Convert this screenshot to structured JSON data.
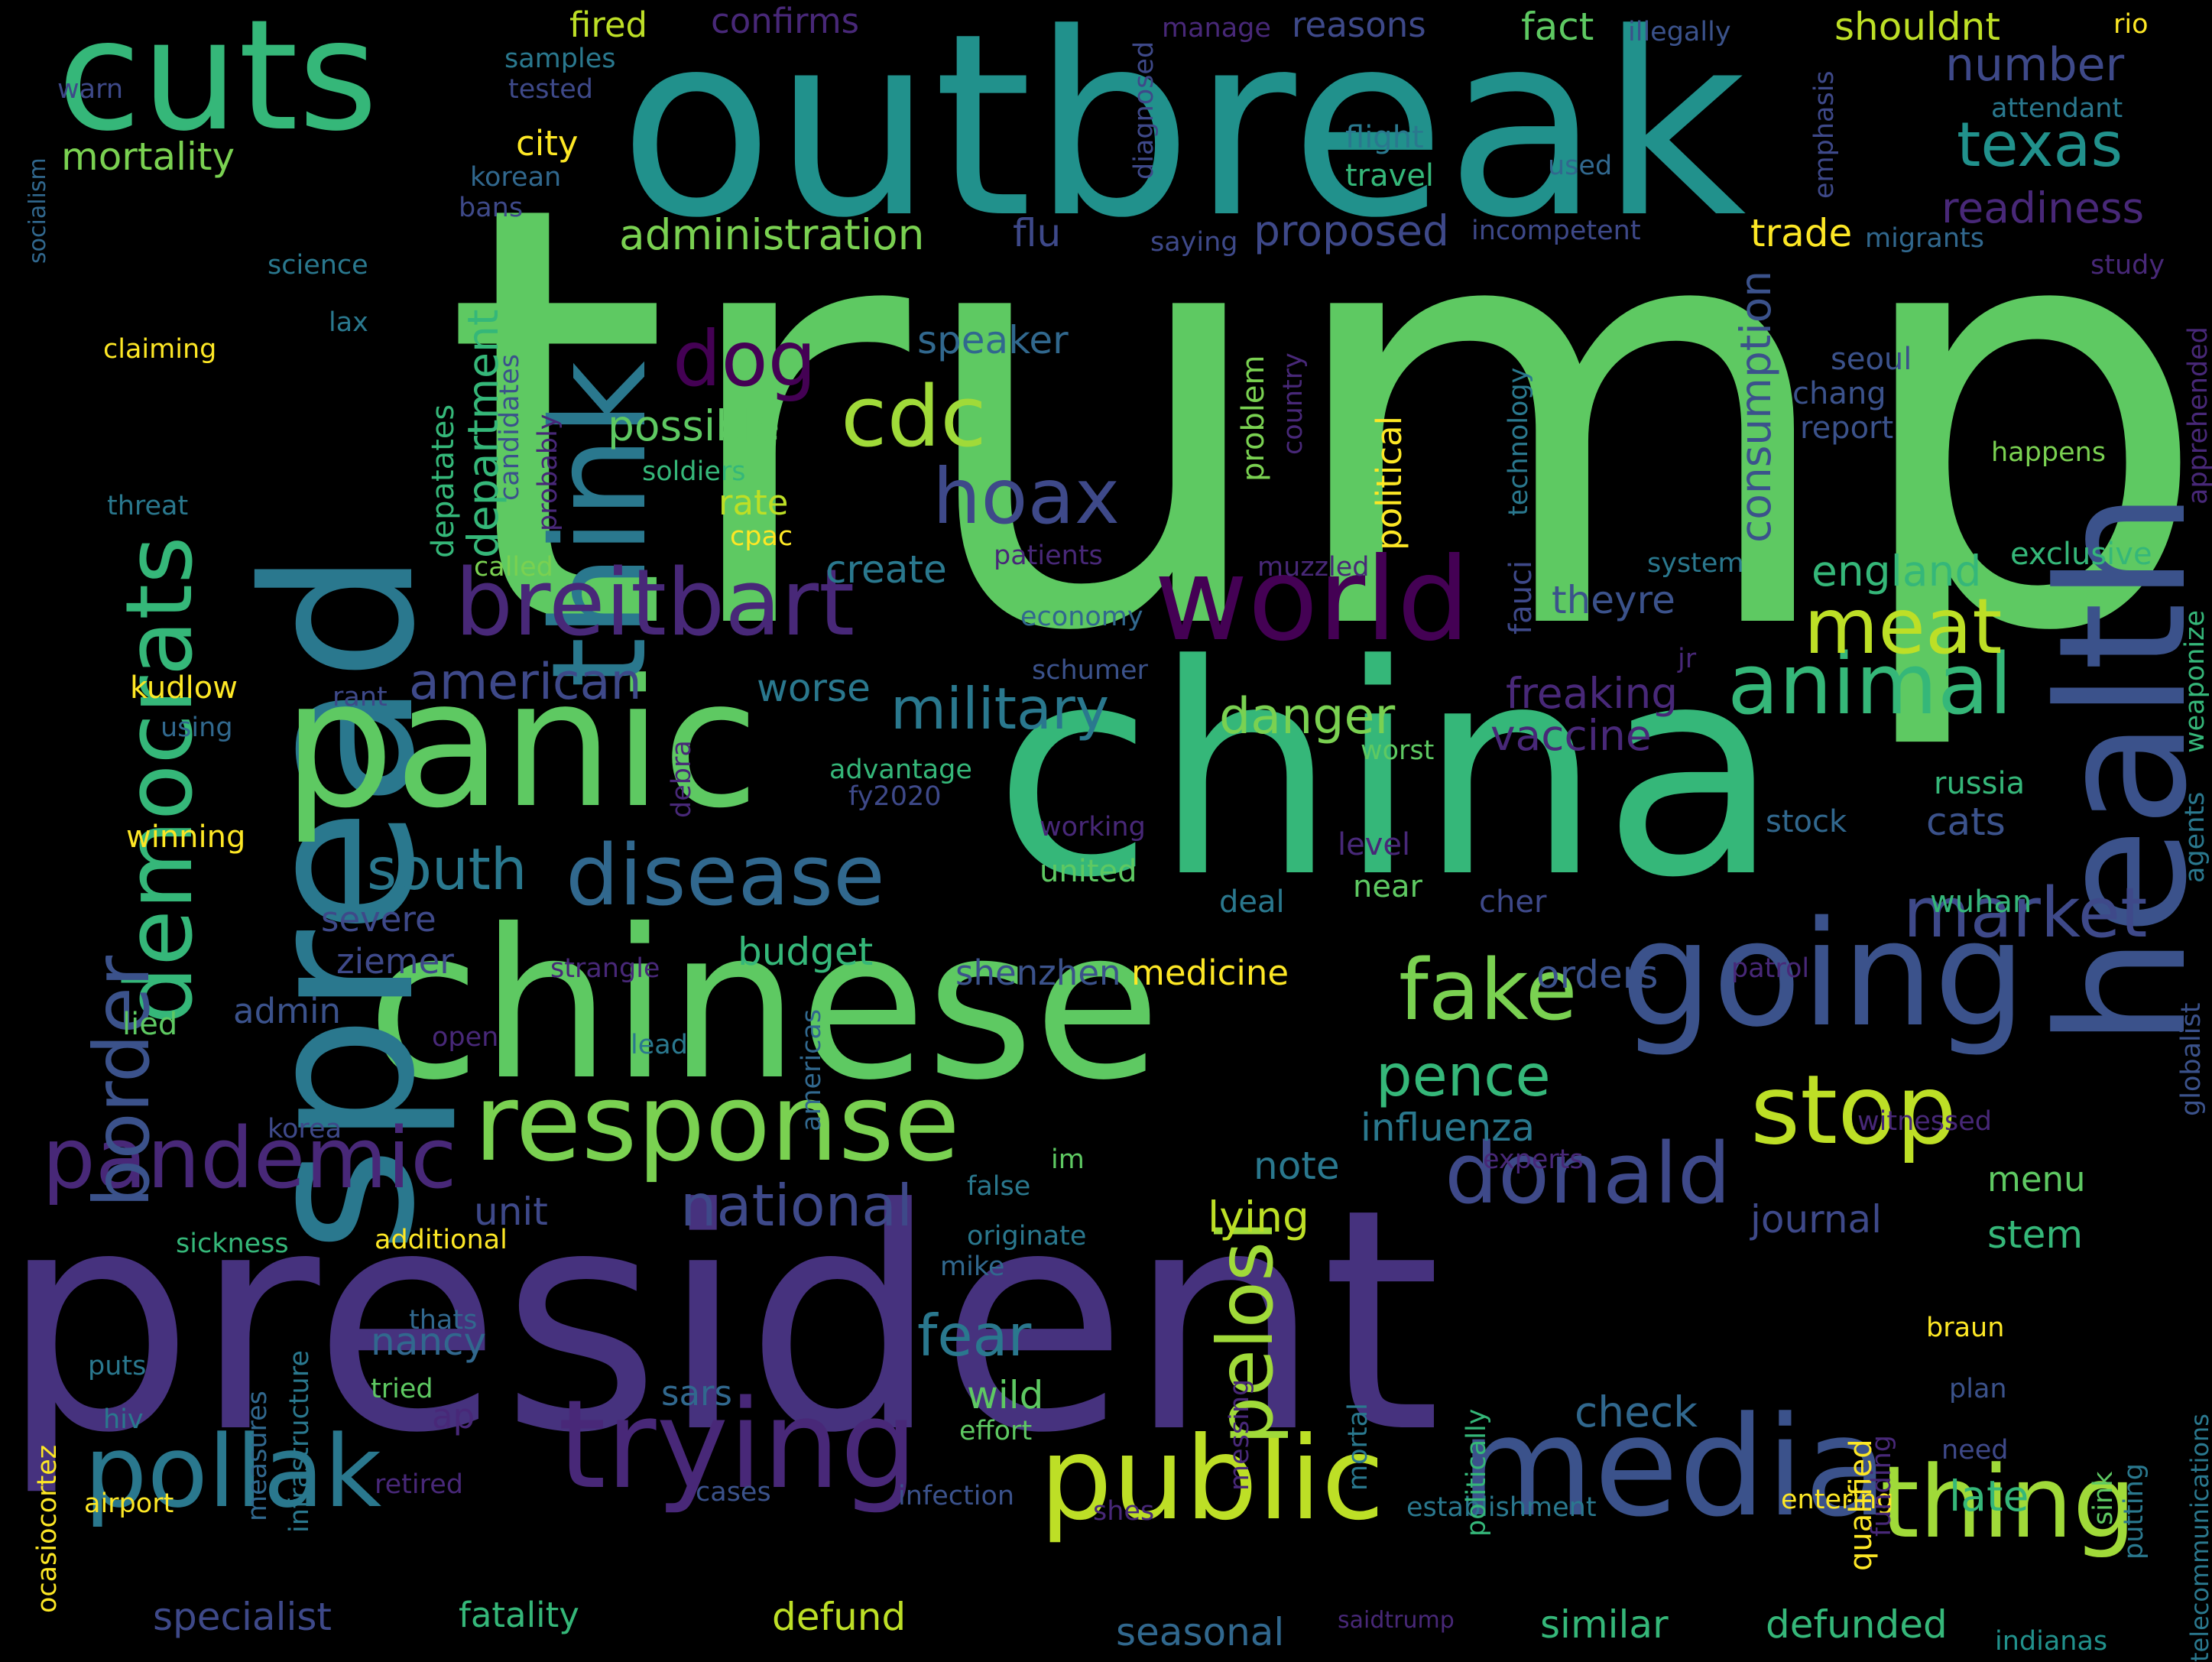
{
  "words": [
    {
      "text": "trump",
      "color": "#5ec962",
      "vertical": false
    },
    {
      "text": "president",
      "color": "#46327e",
      "vertical": false
    },
    {
      "text": "china",
      "color": "#35b779",
      "vertical": false
    },
    {
      "text": "outbreak",
      "color": "#21918c",
      "vertical": false
    },
    {
      "text": "chinese",
      "color": "#5ec962",
      "vertical": false
    },
    {
      "text": "spread",
      "color": "#2a788e",
      "vertical": true
    },
    {
      "text": "health",
      "color": "#3b528b",
      "vertical": true
    },
    {
      "text": "panic",
      "color": "#5ec962",
      "vertical": false
    },
    {
      "text": "cuts",
      "color": "#35b779",
      "vertical": false
    },
    {
      "text": "going",
      "color": "#3b528b",
      "vertical": false
    },
    {
      "text": "media",
      "color": "#3b528b",
      "vertical": false
    },
    {
      "text": "think",
      "color": "#2a788e",
      "vertical": true
    },
    {
      "text": "trying",
      "color": "#482878",
      "vertical": false
    },
    {
      "text": "world",
      "color": "#440154",
      "vertical": false
    },
    {
      "text": "public",
      "color": "#bddf26",
      "vertical": false
    },
    {
      "text": "pollak",
      "color": "#2a788e",
      "vertical": false
    },
    {
      "text": "democrats",
      "color": "#35b779",
      "vertical": true
    },
    {
      "text": "response",
      "color": "#7ad151",
      "vertical": false
    },
    {
      "text": "breitbart",
      "color": "#482878",
      "vertical": false
    },
    {
      "text": "thing",
      "color": "#a0da39",
      "vertical": false
    },
    {
      "text": "stop",
      "color": "#bddf26",
      "vertical": false
    },
    {
      "text": "disease",
      "color": "#31688e",
      "vertical": false
    },
    {
      "text": "pandemic",
      "color": "#482878",
      "vertical": false
    },
    {
      "text": "donald",
      "color": "#3e4989",
      "vertical": false
    },
    {
      "text": "animal",
      "color": "#35b779",
      "vertical": false
    },
    {
      "text": "cdc",
      "color": "#a0da39",
      "vertical": false
    },
    {
      "text": "fake",
      "color": "#7ad151",
      "vertical": false
    },
    {
      "text": "meat",
      "color": "#bddf26",
      "vertical": false
    },
    {
      "text": "market",
      "color": "#3e4989",
      "vertical": false
    },
    {
      "text": "texas",
      "color": "#21918c",
      "vertical": false
    },
    {
      "text": "hoax",
      "color": "#3e4989",
      "vertical": false
    },
    {
      "text": "dog",
      "color": "#440154",
      "vertical": false
    },
    {
      "text": "border",
      "color": "#3b528b",
      "vertical": true
    },
    {
      "text": "pelosi",
      "color": "#a0da39",
      "vertical": true
    },
    {
      "text": "military",
      "color": "#2a788e",
      "vertical": false
    },
    {
      "text": "national",
      "color": "#3e4989",
      "vertical": false
    },
    {
      "text": "south",
      "color": "#2a788e",
      "vertical": false
    },
    {
      "text": "american",
      "color": "#3e4989",
      "vertical": false
    },
    {
      "text": "danger",
      "color": "#7ad151",
      "vertical": false
    },
    {
      "text": "fear",
      "color": "#2a788e",
      "vertical": false
    },
    {
      "text": "pence",
      "color": "#35b779",
      "vertical": false
    },
    {
      "text": "administration",
      "color": "#7ad151",
      "vertical": false
    },
    {
      "text": "number",
      "color": "#3e4989",
      "vertical": false
    },
    {
      "text": "readiness",
      "color": "#482878",
      "vertical": false
    },
    {
      "text": "consumption",
      "color": "#3b528b",
      "vertical": true
    },
    {
      "text": "department",
      "color": "#35b779",
      "vertical": true
    },
    {
      "text": "influenza",
      "color": "#2a788e",
      "vertical": false
    },
    {
      "text": "proposed",
      "color": "#3e4989",
      "vertical": false
    },
    {
      "text": "england",
      "color": "#35b779",
      "vertical": false
    },
    {
      "text": "speaker",
      "color": "#31688e",
      "vertical": false
    },
    {
      "text": "possible",
      "color": "#5ec962",
      "vertical": false
    },
    {
      "text": "freaking",
      "color": "#482878",
      "vertical": false
    },
    {
      "text": "vaccine",
      "color": "#482878",
      "vertical": false
    },
    {
      "text": "worse",
      "color": "#2a788e",
      "vertical": false
    },
    {
      "text": "create",
      "color": "#2a788e",
      "vertical": false
    },
    {
      "text": "theyre",
      "color": "#3b528b",
      "vertical": false
    },
    {
      "text": "note",
      "color": "#2a788e",
      "vertical": false
    },
    {
      "text": "menu",
      "color": "#5ec962",
      "vertical": false
    },
    {
      "text": "stem",
      "color": "#35b779",
      "vertical": false
    },
    {
      "text": "journal",
      "color": "#3e4989",
      "vertical": false
    },
    {
      "text": "lying",
      "color": "#bddf26",
      "vertical": false
    },
    {
      "text": "check",
      "color": "#31688e",
      "vertical": false
    },
    {
      "text": "late",
      "color": "#35b779",
      "vertical": false
    },
    {
      "text": "medicine",
      "color": "#fde725",
      "vertical": false
    },
    {
      "text": "orders",
      "color": "#3b528b",
      "vertical": false
    },
    {
      "text": "shenzhen",
      "color": "#3b528b",
      "vertical": false
    },
    {
      "text": "budget",
      "color": "#35b779",
      "vertical": false
    },
    {
      "text": "nancy",
      "color": "#31688e",
      "vertical": false
    },
    {
      "text": "wild",
      "color": "#5ec962",
      "vertical": false
    },
    {
      "text": "ziemer",
      "color": "#3e4989",
      "vertical": false
    },
    {
      "text": "severe",
      "color": "#3e4989",
      "vertical": false
    },
    {
      "text": "admin",
      "color": "#3b528b",
      "vertical": false
    },
    {
      "text": "unit",
      "color": "#3e4989",
      "vertical": false
    },
    {
      "text": "rate",
      "color": "#bddf26",
      "vertical": false
    },
    {
      "text": "fired",
      "color": "#bddf26",
      "vertical": false
    },
    {
      "text": "confirms",
      "color": "#482878",
      "vertical": false
    },
    {
      "text": "reasons",
      "color": "#3e4989",
      "vertical": false
    },
    {
      "text": "fact",
      "color": "#5ec962",
      "vertical": false
    },
    {
      "text": "shouldnt",
      "color": "#bddf26",
      "vertical": false
    },
    {
      "text": "mortality",
      "color": "#7ad151",
      "vertical": false
    },
    {
      "text": "city",
      "color": "#fde725",
      "vertical": false
    },
    {
      "text": "flu",
      "color": "#3e4989",
      "vertical": false
    },
    {
      "text": "trade",
      "color": "#fde725",
      "vertical": false
    },
    {
      "text": "specialist",
      "color": "#3e4989",
      "vertical": false
    },
    {
      "text": "fatality",
      "color": "#35b779",
      "vertical": false
    },
    {
      "text": "defund",
      "color": "#bddf26",
      "vertical": false
    },
    {
      "text": "seasonal",
      "color": "#31688e",
      "vertical": false
    },
    {
      "text": "similar",
      "color": "#35b779",
      "vertical": false
    },
    {
      "text": "defunded",
      "color": "#35b779",
      "vertical": false
    },
    {
      "text": "political",
      "color": "#fde725",
      "vertical": true
    },
    {
      "text": "problem",
      "color": "#7ad151",
      "vertical": true
    },
    {
      "text": "depatates",
      "color": "#35b779",
      "vertical": true
    },
    {
      "text": "sars",
      "color": "#31688e",
      "vertical": false
    },
    {
      "text": "ap",
      "color": "#482878",
      "vertical": false
    },
    {
      "text": "fy2020",
      "color": "#3e4989",
      "vertical": false
    },
    {
      "text": "advantage",
      "color": "#35b779",
      "vertical": false
    },
    {
      "text": "winning",
      "color": "#fde725",
      "vertical": false
    },
    {
      "text": "kudlow",
      "color": "#fde725",
      "vertical": false
    },
    {
      "text": "using",
      "color": "#31688e",
      "vertical": false
    },
    {
      "text": "rant",
      "color": "#3e4989",
      "vertical": false
    },
    {
      "text": "economy",
      "color": "#31688e",
      "vertical": false
    },
    {
      "text": "schumer",
      "color": "#3b528b",
      "vertical": false
    },
    {
      "text": "patients",
      "color": "#482878",
      "vertical": false
    },
    {
      "text": "muzzled",
      "color": "#482878",
      "vertical": false
    },
    {
      "text": "system",
      "color": "#2a788e",
      "vertical": false
    },
    {
      "text": "exclusive",
      "color": "#35b779",
      "vertical": false
    },
    {
      "text": "worst",
      "color": "#5ec962",
      "vertical": false
    },
    {
      "text": "jr",
      "color": "#482878",
      "vertical": false
    },
    {
      "text": "russia",
      "color": "#35b779",
      "vertical": false
    },
    {
      "text": "stock",
      "color": "#31688e",
      "vertical": false
    },
    {
      "text": "cats",
      "color": "#3b528b",
      "vertical": false
    },
    {
      "text": "working",
      "color": "#482878",
      "vertical": false
    },
    {
      "text": "level",
      "color": "#482878",
      "vertical": false
    },
    {
      "text": "united",
      "color": "#5ec962",
      "vertical": false
    },
    {
      "text": "deal",
      "color": "#2a788e",
      "vertical": false
    },
    {
      "text": "near",
      "color": "#5ec962",
      "vertical": false
    },
    {
      "text": "cher",
      "color": "#3e4989",
      "vertical": false
    },
    {
      "text": "wuhan",
      "color": "#35b779",
      "vertical": false
    },
    {
      "text": "strangle",
      "color": "#482878",
      "vertical": false
    },
    {
      "text": "patrol",
      "color": "#482878",
      "vertical": false
    },
    {
      "text": "lead",
      "color": "#2a788e",
      "vertical": false
    },
    {
      "text": "open",
      "color": "#482878",
      "vertical": false
    },
    {
      "text": "lied",
      "color": "#5ec962",
      "vertical": false
    },
    {
      "text": "korea",
      "color": "#3e4989",
      "vertical": false
    },
    {
      "text": "sickness",
      "color": "#35b779",
      "vertical": false
    },
    {
      "text": "additional",
      "color": "#fde725",
      "vertical": false
    },
    {
      "text": "originate",
      "color": "#2a788e",
      "vertical": false
    },
    {
      "text": "mike",
      "color": "#31688e",
      "vertical": false
    },
    {
      "text": "false",
      "color": "#2a788e",
      "vertical": false
    },
    {
      "text": "im",
      "color": "#5ec962",
      "vertical": false
    },
    {
      "text": "experts",
      "color": "#482878",
      "vertical": false
    },
    {
      "text": "witnessed",
      "color": "#482878",
      "vertical": false
    },
    {
      "text": "thats",
      "color": "#31688e",
      "vertical": false
    },
    {
      "text": "puts",
      "color": "#2a788e",
      "vertical": false
    },
    {
      "text": "tried",
      "color": "#5ec962",
      "vertical": false
    },
    {
      "text": "hiv",
      "color": "#2a788e",
      "vertical": false
    },
    {
      "text": "effort",
      "color": "#5ec962",
      "vertical": false
    },
    {
      "text": "retired",
      "color": "#482878",
      "vertical": false
    },
    {
      "text": "cases",
      "color": "#3b528b",
      "vertical": false
    },
    {
      "text": "airport",
      "color": "#fde725",
      "vertical": false
    },
    {
      "text": "infection",
      "color": "#3b528b",
      "vertical": false
    },
    {
      "text": "shes",
      "color": "#482878",
      "vertical": false
    },
    {
      "text": "establishment",
      "color": "#2a788e",
      "vertical": false
    },
    {
      "text": "entering",
      "color": "#fde725",
      "vertical": false
    },
    {
      "text": "braun",
      "color": "#fde725",
      "vertical": false
    },
    {
      "text": "plan",
      "color": "#3b528b",
      "vertical": false
    },
    {
      "text": "need",
      "color": "#3e4989",
      "vertical": false
    },
    {
      "text": "saidtrump",
      "color": "#482878",
      "vertical": false
    },
    {
      "text": "indianas",
      "color": "#21918c",
      "vertical": false
    },
    {
      "text": "samples",
      "color": "#2a788e",
      "vertical": false
    },
    {
      "text": "tested",
      "color": "#3e4989",
      "vertical": false
    },
    {
      "text": "korean",
      "color": "#31688e",
      "vertical": false
    },
    {
      "text": "bans",
      "color": "#3e4989",
      "vertical": false
    },
    {
      "text": "science",
      "color": "#2a788e",
      "vertical": false
    },
    {
      "text": "lax",
      "color": "#2a788e",
      "vertical": false
    },
    {
      "text": "claiming",
      "color": "#fde725",
      "vertical": false
    },
    {
      "text": "threat",
      "color": "#2a788e",
      "vertical": false
    },
    {
      "text": "soldiers",
      "color": "#35b779",
      "vertical": false
    },
    {
      "text": "called",
      "color": "#7ad151",
      "vertical": false
    },
    {
      "text": "cpac",
      "color": "#fde725",
      "vertical": false
    },
    {
      "text": "manage",
      "color": "#482878",
      "vertical": false
    },
    {
      "text": "flight",
      "color": "#2a788e",
      "vertical": false
    },
    {
      "text": "travel",
      "color": "#35b779",
      "vertical": false
    },
    {
      "text": "used",
      "color": "#31688e",
      "vertical": false
    },
    {
      "text": "saying",
      "color": "#3e4989",
      "vertical": false
    },
    {
      "text": "incompetent",
      "color": "#3e4989",
      "vertical": false
    },
    {
      "text": "illegally",
      "color": "#3b528b",
      "vertical": false
    },
    {
      "text": "rio",
      "color": "#fde725",
      "vertical": false
    },
    {
      "text": "attendant",
      "color": "#2a788e",
      "vertical": false
    },
    {
      "text": "migrants",
      "color": "#31688e",
      "vertical": false
    },
    {
      "text": "study",
      "color": "#482878",
      "vertical": false
    },
    {
      "text": "seoul",
      "color": "#3b528b",
      "vertical": false
    },
    {
      "text": "chang",
      "color": "#3b528b",
      "vertical": false
    },
    {
      "text": "report",
      "color": "#3b528b",
      "vertical": false
    },
    {
      "text": "happens",
      "color": "#7ad151",
      "vertical": false
    },
    {
      "text": "warn",
      "color": "#3e4989",
      "vertical": false
    },
    {
      "text": "socialism",
      "color": "#31688e",
      "vertical": true
    },
    {
      "text": "diagnosed",
      "color": "#3e4989",
      "vertical": true
    },
    {
      "text": "emphasis",
      "color": "#3e4989",
      "vertical": true
    },
    {
      "text": "technology",
      "color": "#2a788e",
      "vertical": true
    },
    {
      "text": "country",
      "color": "#482878",
      "vertical": true
    },
    {
      "text": "candidates",
      "color": "#3b528b",
      "vertical": true
    },
    {
      "text": "probably",
      "color": "#482878",
      "vertical": true
    },
    {
      "text": "fauci",
      "color": "#3e4989",
      "vertical": true
    },
    {
      "text": "debra",
      "color": "#482878",
      "vertical": true
    },
    {
      "text": "apprehended",
      "color": "#482878",
      "vertical": true
    },
    {
      "text": "weaponize",
      "color": "#35b779",
      "vertical": true
    },
    {
      "text": "agents",
      "color": "#2a788e",
      "vertical": true
    },
    {
      "text": "globalist",
      "color": "#3b528b",
      "vertical": true
    },
    {
      "text": "americas",
      "color": "#31688e",
      "vertical": true
    },
    {
      "text": "measures",
      "color": "#31688e",
      "vertical": true
    },
    {
      "text": "infrastructure",
      "color": "#2a788e",
      "vertical": true
    },
    {
      "text": "ocasiocortez",
      "color": "#fde725",
      "vertical": true
    },
    {
      "text": "messing",
      "color": "#482878",
      "vertical": true
    },
    {
      "text": "mortal",
      "color": "#2a788e",
      "vertical": true
    },
    {
      "text": "politically",
      "color": "#35b779",
      "vertical": true
    },
    {
      "text": "qualified",
      "color": "#fde725",
      "vertical": true
    },
    {
      "text": "funding",
      "color": "#482878",
      "vertical": true
    },
    {
      "text": "sink",
      "color": "#5ec962",
      "vertical": true
    },
    {
      "text": "putting",
      "color": "#2a788e",
      "vertical": true
    },
    {
      "text": "telecommunications",
      "color": "#2a788e",
      "vertical": true
    }
  ]
}
